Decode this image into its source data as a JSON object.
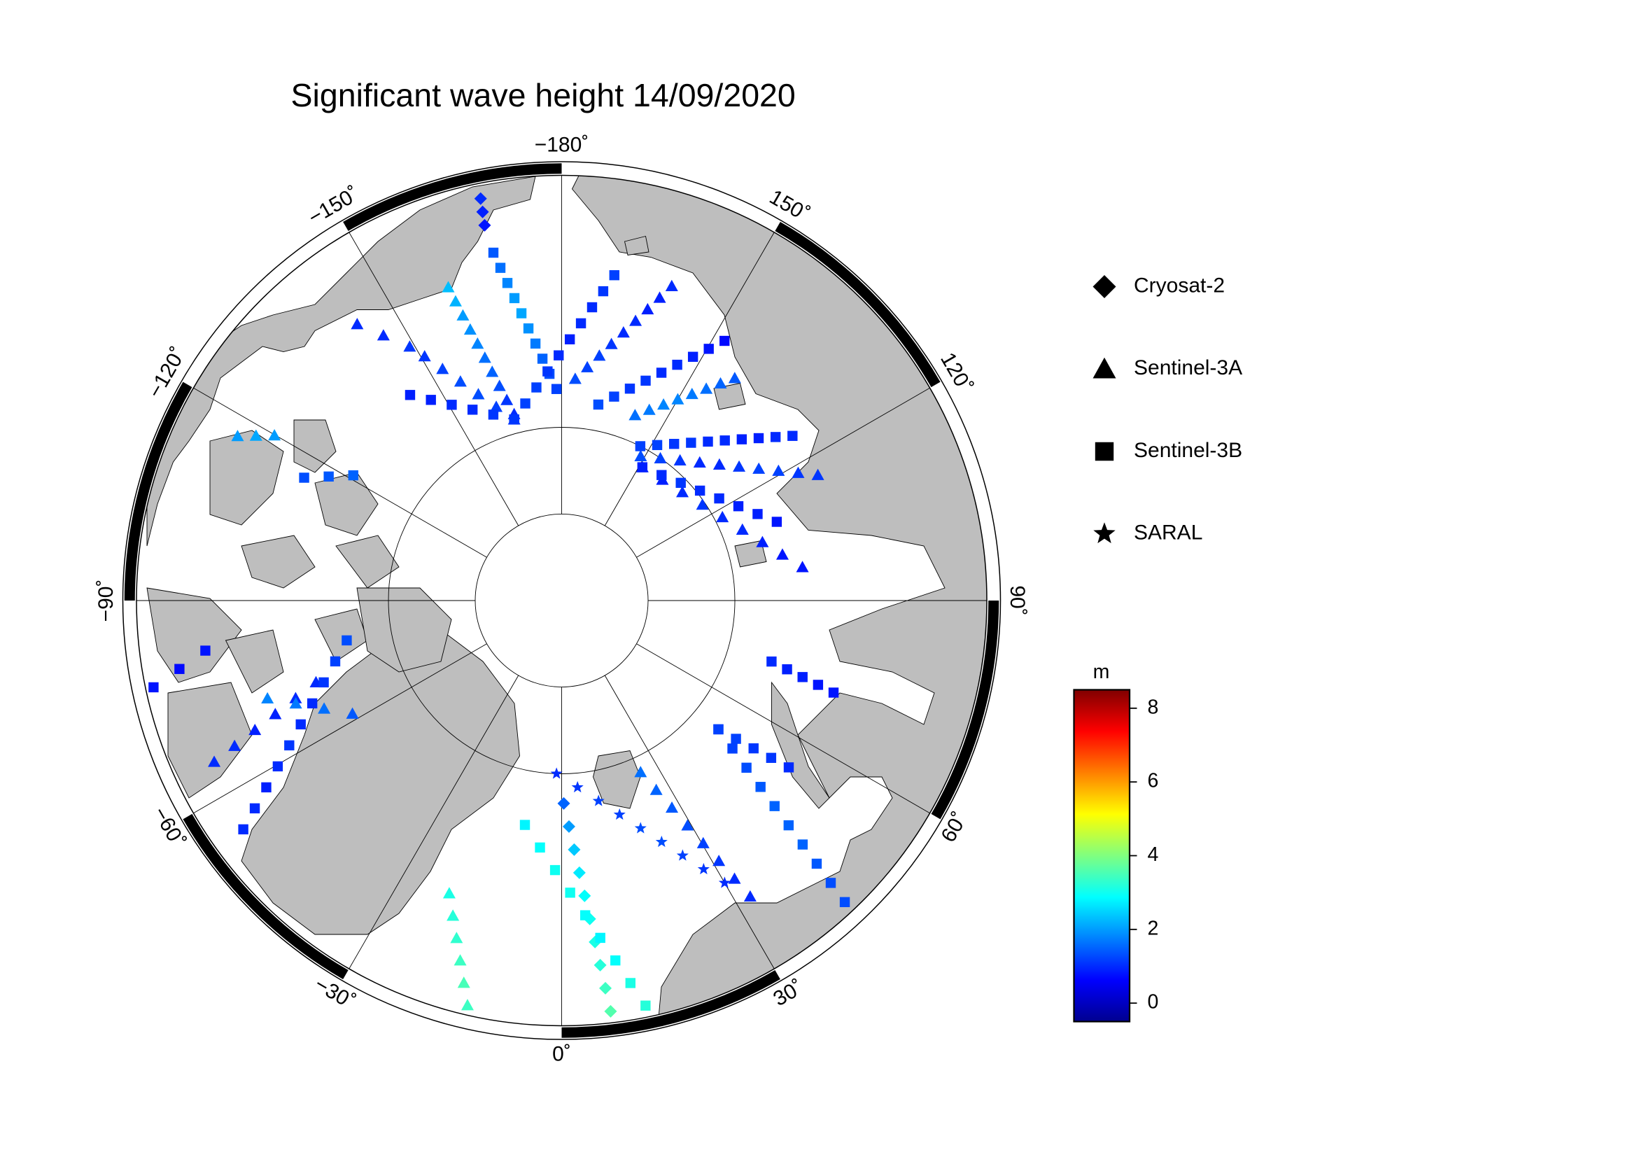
{
  "title": "Significant wave height 14/09/2020",
  "map": {
    "lon_ticks": [
      {
        "value": -180,
        "label": "−180˚"
      },
      {
        "value": -150,
        "label": "−150˚"
      },
      {
        "value": -120,
        "label": "−120˚"
      },
      {
        "value": -90,
        "label": "−90˚"
      },
      {
        "value": -60,
        "label": "−60˚"
      },
      {
        "value": -30,
        "label": "−30˚"
      },
      {
        "value": 0,
        "label": "0˚"
      },
      {
        "value": 30,
        "label": "30˚"
      },
      {
        "value": 60,
        "label": "60˚"
      },
      {
        "value": 90,
        "label": "90˚"
      },
      {
        "value": 120,
        "label": "120˚"
      },
      {
        "value": 150,
        "label": "150˚"
      }
    ],
    "graticule_lats": [
      80,
      85
    ]
  },
  "series": [
    {
      "name": "Cryosat-2",
      "marker": "diamond",
      "tracks": [
        {
          "start": [
            0.6,
            78.3
          ],
          "end": [
            6.8,
            66.4
          ],
          "values": [
            1.5,
            2.0,
            2.4,
            2.7,
            2.9,
            3.0,
            3.1,
            3.2,
            3.4,
            3.6
          ]
        },
        {
          "start": [
            -168.6,
            66.6
          ],
          "end": [
            -168.4,
            68.1
          ],
          "values": [
            1.0,
            0.9,
            0.8
          ]
        }
      ]
    },
    {
      "name": "Sentinel-3A",
      "marker": "triangle",
      "tracks": [
        {
          "start": [
            -160.1,
            70.9
          ],
          "end": [
            -165.7,
            78.9
          ],
          "values": [
            2.3,
            2.2,
            2.0,
            1.9,
            1.8,
            1.6,
            1.5,
            1.3,
            1.1,
            1.0
          ]
        },
        {
          "start": [
            160.7,
            70.9
          ],
          "end": [
            176.5,
            77.2
          ],
          "values": [
            1.0,
            0.9,
            0.9,
            1.0,
            1.0,
            1.1,
            1.2,
            1.2,
            1.3
          ]
        },
        {
          "start": [
            142.1,
            73.8
          ],
          "end": [
            158.4,
            78.5
          ],
          "values": [
            1.4,
            1.5,
            1.6,
            1.7,
            1.8,
            1.8,
            1.7,
            1.6
          ]
        },
        {
          "start": [
            116.1,
            73.6
          ],
          "end": [
            151.3,
            80.5
          ],
          "values": [
            1.1,
            1.1,
            1.2,
            1.2,
            1.1,
            1.0,
            1.0,
            1.1,
            1.2,
            1.3
          ]
        },
        {
          "start": [
            97.9,
            76.0
          ],
          "end": [
            148.8,
            81.0
          ],
          "values": [
            0.8,
            0.8,
            0.9,
            1.0,
            1.0,
            1.1,
            1.0,
            0.9,
            0.9
          ]
        },
        {
          "start": [
            24.7,
            79.1
          ],
          "end": [
            32.5,
            69.9
          ],
          "values": [
            1.6,
            1.5,
            1.4,
            1.3,
            1.2,
            1.1,
            1.0,
            1.0
          ]
        },
        {
          "start": [
            -21.0,
            72.0
          ],
          "end": [
            -13.1,
            66.3
          ],
          "values": [
            3.1,
            3.2,
            3.3,
            3.4,
            3.5,
            3.4
          ]
        },
        {
          "start": [
            -71.6,
            75.1
          ],
          "end": [
            -65.1,
            68.1
          ],
          "values": [
            1.0,
            1.0,
            0.9,
            0.9,
            1.0,
            1.0
          ]
        },
        {
          "start": [
            -71.6,
            72.2
          ],
          "end": [
            -61.6,
            76.3
          ],
          "values": [
            1.8,
            1.7,
            1.6,
            1.4
          ]
        },
        {
          "start": [
            -150.7,
            73.9
          ],
          "end": [
            -165.3,
            79.2
          ],
          "values": [
            1.1,
            1.2,
            1.3,
            1.3,
            1.2,
            1.1
          ]
        },
        {
          "start": [
            -143.5,
            70.3
          ],
          "end": [
            -149.1,
            73.0
          ],
          "values": [
            1.0,
            1.0,
            1.1
          ]
        },
        {
          "start": [
            -116.9,
            69.2
          ],
          "end": [
            -119.9,
            71.0
          ],
          "values": [
            2.0,
            2.1,
            2.0
          ]
        }
      ]
    },
    {
      "name": "Sentinel-3B",
      "marker": "square",
      "tracks": [
        {
          "start": [
            -168.9,
            69.7
          ],
          "end": [
            -178.6,
            77.8
          ],
          "values": [
            1.4,
            1.6,
            1.8,
            2.0,
            2.1,
            1.9,
            1.7,
            1.5,
            1.3,
            1.2
          ]
        },
        {
          "start": [
            170.8,
            71.1
          ],
          "end": [
            -165.3,
            79.2
          ],
          "values": [
            1.2,
            1.1,
            1.0,
            1.0,
            0.9,
            1.0,
            1.1,
            1.2,
            1.2,
            1.1
          ]
        },
        {
          "start": [
            147.9,
            72.4
          ],
          "end": [
            169.4,
            78.5
          ],
          "values": [
            0.7,
            0.8,
            0.9,
            1.0,
            1.0,
            1.1,
            1.1,
            1.2,
            1.3
          ]
        },
        {
          "start": [
            125.5,
            73.7
          ],
          "end": [
            153.0,
            80.0
          ],
          "values": [
            1.0,
            1.0,
            0.9,
            0.9,
            1.0,
            1.0,
            1.1,
            1.1,
            1.2,
            1.2
          ]
        },
        {
          "start": [
            110.1,
            76.8
          ],
          "end": [
            148.8,
            81.0
          ],
          "values": [
            0.8,
            0.9,
            0.9,
            1.0,
            1.0,
            1.1,
            1.0,
            0.9
          ]
        },
        {
          "start": [
            71.3,
            73.5
          ],
          "end": [
            73.8,
            77.4
          ],
          "values": [
            0.8,
            0.8,
            0.9,
            0.9,
            1.0
          ]
        },
        {
          "start": [
            53.7,
            73.8
          ],
          "end": [
            50.6,
            78.3
          ],
          "values": [
            1.0,
            1.1,
            1.1,
            1.2,
            1.2
          ]
        },
        {
          "start": [
            43.2,
            66.4
          ],
          "end": [
            50.6,
            78.3
          ],
          "values": [
            1.3,
            1.3,
            1.4,
            1.5,
            1.5,
            1.5,
            1.4,
            1.3,
            1.2,
            1.2
          ]
        },
        {
          "start": [
            -9.3,
            76.9
          ],
          "end": [
            11.7,
            66.4
          ],
          "values": [
            2.8,
            2.9,
            3.0,
            3.0,
            2.9,
            2.8,
            2.9,
            3.1,
            3.2
          ]
        },
        {
          "start": [
            -79.5,
            77.4
          ],
          "end": [
            -54.3,
            67.6
          ],
          "values": [
            1.3,
            1.2,
            1.1,
            1.0,
            1.0,
            1.1,
            1.0,
            0.9,
            1.0,
            1.0
          ]
        },
        {
          "start": [
            -82.0,
            69.4
          ],
          "end": [
            -78.0,
            66.2
          ],
          "values": [
            0.8,
            0.7,
            0.8
          ]
        },
        {
          "start": [
            -143.6,
            75.3
          ],
          "end": [
            -165.3,
            79.2
          ],
          "values": [
            0.9,
            0.9,
            1.0,
            1.0,
            1.1,
            1.1
          ]
        },
        {
          "start": [
            -115.5,
            73.6
          ],
          "end": [
            -121.0,
            76.0
          ],
          "values": [
            1.3,
            1.4,
            1.5
          ]
        }
      ]
    },
    {
      "name": "SARAL",
      "marker": "star",
      "tracks": [
        {
          "start": [
            -1.7,
            80.0
          ],
          "end": [
            30.0,
            71.3
          ],
          "values": [
            1.0,
            1.1,
            1.2,
            1.2,
            1.3,
            1.3,
            1.2,
            1.1,
            1.0
          ]
        }
      ]
    }
  ],
  "colorbar": {
    "label": "m",
    "lim": [
      -0.5,
      8.5
    ],
    "ticks": [
      0,
      2,
      4,
      6,
      8
    ]
  }
}
